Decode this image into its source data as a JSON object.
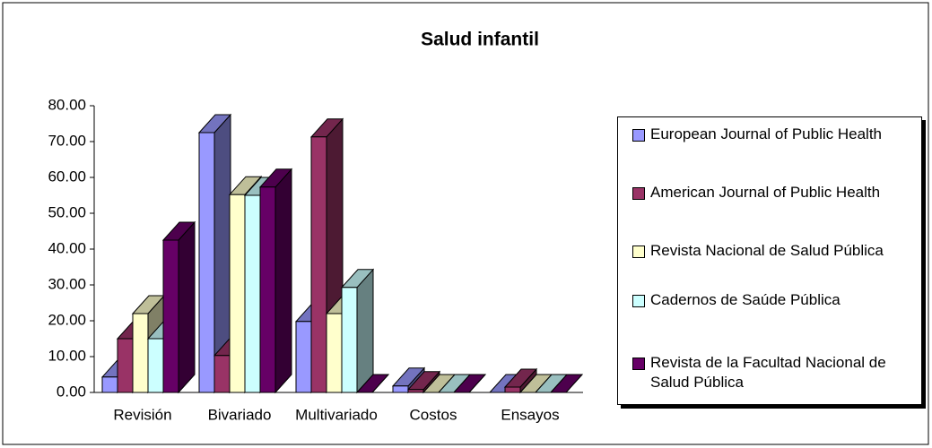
{
  "chart_data": {
    "type": "bar3d",
    "title": "Salud infantil",
    "categories": [
      "Revisión",
      "Bivariado",
      "Multivariado",
      "Costos",
      "Ensayos"
    ],
    "series": [
      {
        "name": "European Journal of Public Health",
        "color": "#9999ff",
        "values": [
          4.3,
          72.5,
          19.8,
          1.8,
          0
        ]
      },
      {
        "name": "American Journal of Public Health",
        "color": "#993366",
        "values": [
          15,
          10.3,
          71.3,
          0.8,
          1.5
        ]
      },
      {
        "name": "Revista Nacional de Salud Pública",
        "color": "#ffffcc",
        "values": [
          22,
          55.2,
          22,
          0,
          0
        ]
      },
      {
        "name": "Cadernos de Saúde Pública",
        "color": "#ccffff",
        "values": [
          15,
          55,
          29.3,
          0,
          0
        ]
      },
      {
        "name": "Revista de la Facultad Nacional de Salud Pública",
        "color": "#660066",
        "values": [
          42.5,
          57.3,
          0,
          0,
          0
        ]
      }
    ],
    "ylim": [
      0,
      80
    ],
    "yticks": [
      {
        "value": 0,
        "label": "0.00"
      },
      {
        "value": 10,
        "label": "10.00"
      },
      {
        "value": 20,
        "label": "20.00"
      },
      {
        "value": 30,
        "label": "30.00"
      },
      {
        "value": 40,
        "label": "40.00"
      },
      {
        "value": 50,
        "label": "50.00"
      },
      {
        "value": 60,
        "label": "60.00"
      },
      {
        "value": 70,
        "label": "70.00"
      },
      {
        "value": 80,
        "label": "80.00"
      }
    ],
    "legend": "right"
  }
}
